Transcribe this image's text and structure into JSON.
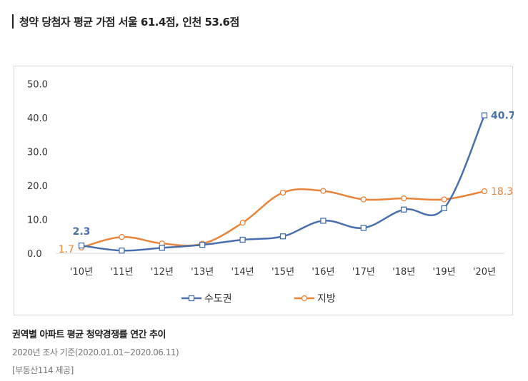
{
  "headline": "청약 당첨자 평균 가점 서울 61.4점, 인천 53.6점",
  "chart_data": {
    "type": "line",
    "categories": [
      "'10년",
      "'11년",
      "'12년",
      "'13년",
      "'14년",
      "'15년",
      "'16년",
      "'17년",
      "'18년",
      "'19년",
      "'20년"
    ],
    "ylim": [
      0,
      50
    ],
    "yticks": [
      "0.0",
      "10.0",
      "20.0",
      "30.0",
      "40.0",
      "50.0"
    ],
    "grid": false,
    "legend_position": "bottom",
    "series": [
      {
        "name": "수도권",
        "color": "#4a6fae",
        "marker": "square",
        "values": [
          2.3,
          0.8,
          1.6,
          2.5,
          4.0,
          5.0,
          9.6,
          7.5,
          12.9,
          13.3,
          40.7
        ]
      },
      {
        "name": "지방",
        "color": "#e8843a",
        "marker": "circle",
        "values": [
          1.7,
          4.8,
          2.9,
          2.8,
          9.0,
          17.9,
          18.4,
          15.9,
          16.2,
          15.9,
          18.3
        ]
      }
    ],
    "data_labels": [
      {
        "series": 0,
        "index": 0,
        "text": "2.3"
      },
      {
        "series": 0,
        "index": 10,
        "text": "40.7"
      },
      {
        "series": 1,
        "index": 0,
        "text": "1.7"
      },
      {
        "series": 1,
        "index": 10,
        "text": "18.3"
      }
    ]
  },
  "caption": {
    "title": "권역별 아파트 평균 청약경쟁률 연간 추이",
    "period": "2020년 조사 기준(2020.01.01~2020.06.11)",
    "source": "[부동산114 제공]"
  }
}
